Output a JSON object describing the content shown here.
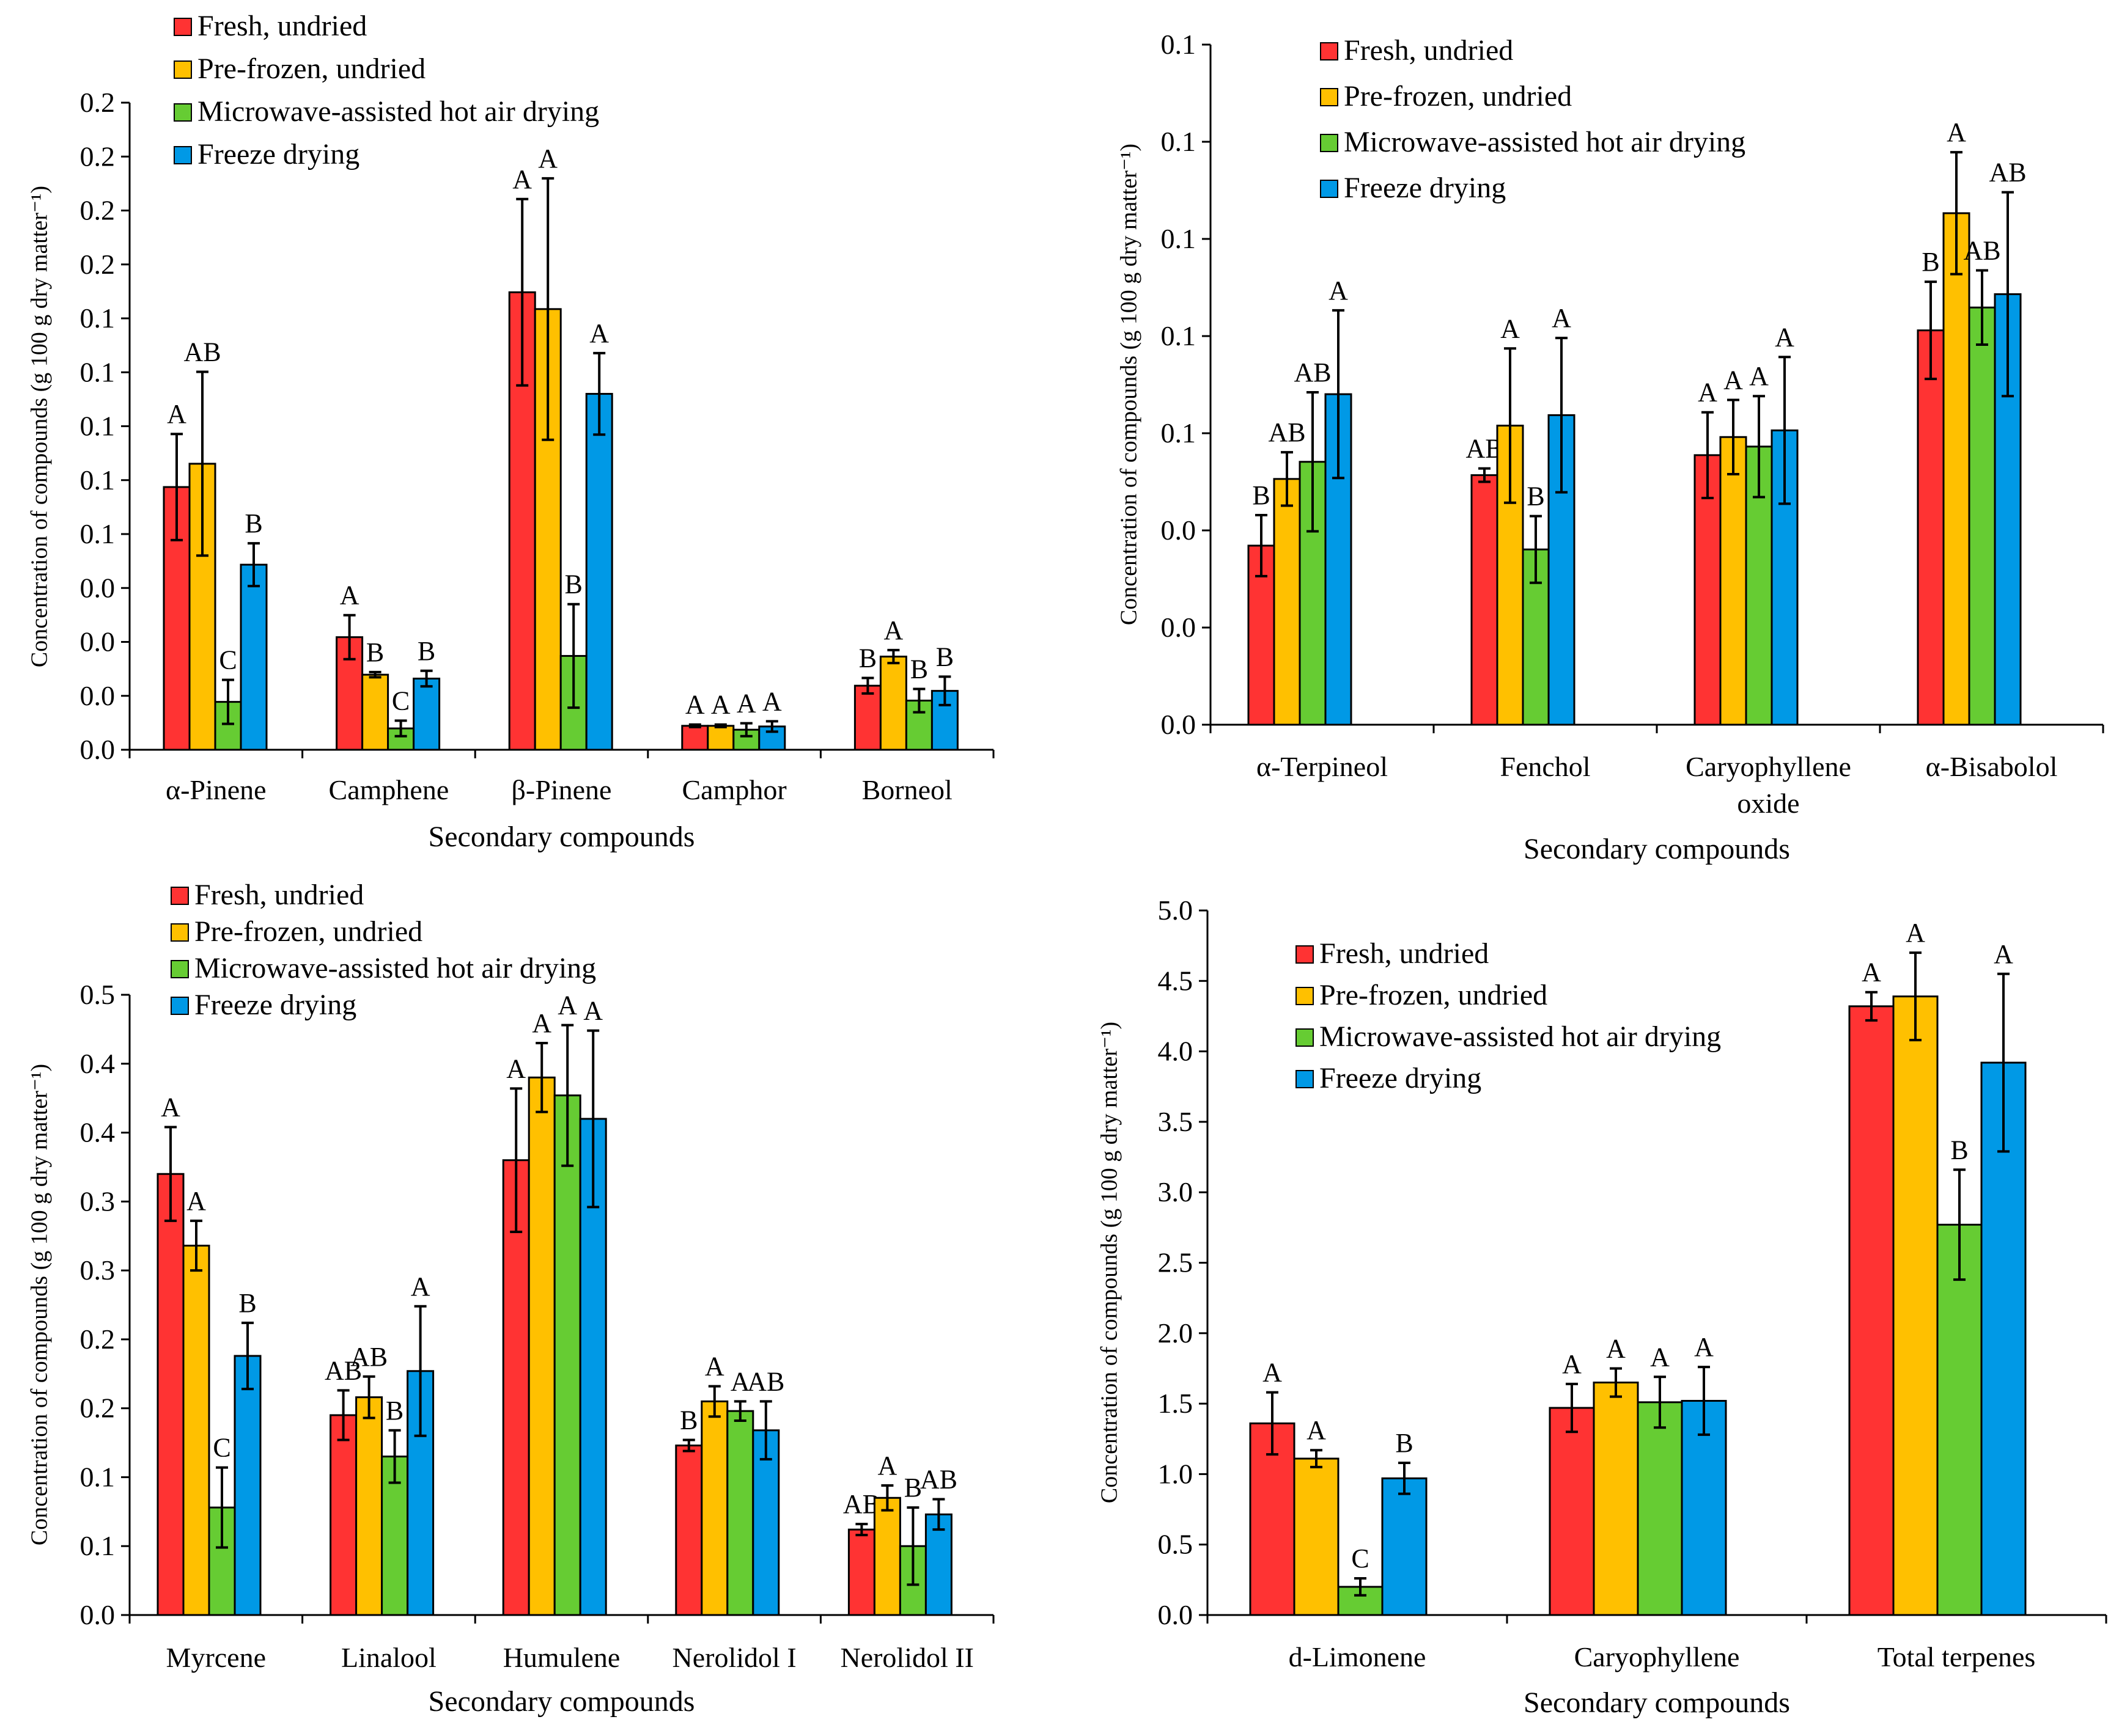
{
  "chart_data": [
    {
      "type": "bar",
      "panel": "top-left",
      "categories": [
        "α-Pinene",
        "Camphene",
        "β-Pinene",
        "Camphor",
        "Borneol"
      ],
      "xlabel": "Secondary compounds",
      "ylabel": "Concentration of compounds (g 100 g dry matter⁻¹)",
      "ylim": [
        0,
        0.2
      ],
      "yticks": [
        "0.0",
        "0.0",
        "0.0",
        "0.0",
        "0.1",
        "0.1",
        "0.1",
        "0.1",
        "0.1",
        "0.2",
        "0.2",
        "0.2",
        "0.2"
      ],
      "legend_position": "top-left",
      "series": [
        {
          "name": "Fresh, undried",
          "color": "#ff3333",
          "values": [
            0.0812,
            0.0348,
            0.1414,
            0.0074,
            0.0198
          ],
          "errors": [
            0.0164,
            0.0068,
            0.0288,
            0.0004,
            0.0024
          ],
          "letters": [
            "A",
            "A",
            "A",
            "A",
            "B"
          ]
        },
        {
          "name": "Pre-frozen, undried",
          "color": "#ffc000",
          "values": [
            0.0884,
            0.0232,
            0.1362,
            0.0074,
            0.0288
          ],
          "errors": [
            0.0284,
            0.0008,
            0.0404,
            0.0004,
            0.002
          ],
          "letters": [
            "AB",
            "B",
            "A",
            "A",
            "A"
          ]
        },
        {
          "name": "Microwave-assisted hot air drying",
          "color": "#66cc33",
          "values": [
            0.0148,
            0.0066,
            0.029,
            0.0062,
            0.0152
          ],
          "errors": [
            0.0068,
            0.0024,
            0.016,
            0.002,
            0.0036
          ],
          "letters": [
            "C",
            "C",
            "B",
            "A",
            "B"
          ]
        },
        {
          "name": "Freeze drying",
          "color": "#0099e6",
          "values": [
            0.0572,
            0.022,
            0.11,
            0.0072,
            0.0182
          ],
          "errors": [
            0.0066,
            0.0024,
            0.0126,
            0.0016,
            0.0044
          ],
          "letters": [
            "B",
            "B",
            "A",
            "A",
            "B"
          ]
        }
      ]
    },
    {
      "type": "bar",
      "panel": "top-right",
      "categories": [
        "α-Terpineol",
        "Fenchol",
        "Caryophyllene oxide",
        "α-Bisabolol"
      ],
      "xlabel": "Secondary compounds",
      "ylabel": "Concentration of compounds (g 100 g dry matter⁻¹)",
      "ylim": [
        0,
        0.0714
      ],
      "yticks": [
        "0.0",
        "0.0",
        "0.0",
        "0.1",
        "0.1",
        "0.1",
        "0.1",
        "0.1"
      ],
      "legend_position": "top-left",
      "series": [
        {
          "name": "Fresh, undried",
          "color": "#ff3333",
          "values": [
            0.0188,
            0.0262,
            0.0283,
            0.0414
          ],
          "errors": [
            0.0032,
            0.0007,
            0.0045,
            0.0051
          ],
          "letters": [
            "B",
            "AB",
            "A",
            "B"
          ]
        },
        {
          "name": "Pre-frozen, undried",
          "color": "#ffc000",
          "values": [
            0.0258,
            0.0314,
            0.0302,
            0.0537
          ],
          "errors": [
            0.0028,
            0.0081,
            0.0039,
            0.0064
          ],
          "letters": [
            "AB",
            "A",
            "A",
            "A"
          ]
        },
        {
          "name": "Microwave-assisted hot air drying",
          "color": "#66cc33",
          "values": [
            0.0276,
            0.0184,
            0.0292,
            0.0438
          ],
          "errors": [
            0.0073,
            0.0035,
            0.0053,
            0.0039
          ],
          "letters": [
            "AB",
            "B",
            "A",
            "AB"
          ]
        },
        {
          "name": "Freeze drying",
          "color": "#0099e6",
          "values": [
            0.0347,
            0.0325,
            0.0309,
            0.0452
          ],
          "errors": [
            0.0088,
            0.0081,
            0.0077,
            0.0107
          ],
          "letters": [
            "A",
            "A",
            "A",
            "AB"
          ]
        }
      ]
    },
    {
      "type": "bar",
      "panel": "bottom-left",
      "categories": [
        "Myrcene",
        "Linalool",
        "Humulene",
        "Nerolidol I",
        "Nerolidol II"
      ],
      "xlabel": "Secondary compounds",
      "ylabel": "Concentration of compounds (g 100 g dry matter⁻¹)",
      "ylim": [
        0,
        0.45
      ],
      "yticks": [
        "0.0",
        "0.1",
        "0.1",
        "0.2",
        "0.2",
        "0.3",
        "0.3",
        "0.4",
        "0.4",
        "0.5"
      ],
      "legend_position": "top-left",
      "series": [
        {
          "name": "Fresh, undried",
          "color": "#ff3333",
          "values": [
            0.32,
            0.145,
            0.33,
            0.123,
            0.062
          ],
          "errors": [
            0.034,
            0.018,
            0.052,
            0.004,
            0.004
          ],
          "letters": [
            "A",
            "AB",
            "A",
            "B",
            "AB"
          ]
        },
        {
          "name": "Pre-frozen, undried",
          "color": "#ffc000",
          "values": [
            0.268,
            0.158,
            0.39,
            0.155,
            0.085
          ],
          "errors": [
            0.018,
            0.015,
            0.025,
            0.011,
            0.009
          ],
          "letters": [
            "A",
            "AB",
            "A",
            "A",
            "A"
          ]
        },
        {
          "name": "Microwave-assisted hot air drying",
          "color": "#66cc33",
          "values": [
            0.078,
            0.115,
            0.377,
            0.148,
            0.05
          ],
          "errors": [
            0.029,
            0.019,
            0.051,
            0.007,
            0.028
          ],
          "letters": [
            "C",
            "B",
            "A",
            "A",
            "B"
          ]
        },
        {
          "name": "Freeze drying",
          "color": "#0099e6",
          "values": [
            0.188,
            0.177,
            0.36,
            0.134,
            0.073
          ],
          "errors": [
            0.024,
            0.047,
            0.064,
            0.021,
            0.011
          ],
          "letters": [
            "B",
            "A",
            "A",
            "AB",
            "AB"
          ]
        }
      ]
    },
    {
      "type": "bar",
      "panel": "bottom-right",
      "categories": [
        "d-Limonene",
        "Caryophyllene",
        "Total terpenes"
      ],
      "xlabel": "Secondary compounds",
      "ylabel": "Concentration of compounds (g 100 g dry matter⁻¹)",
      "ylim": [
        0,
        5
      ],
      "yticks": [
        "0.0",
        "0.5",
        "1.0",
        "1.5",
        "2.0",
        "2.5",
        "3.0",
        "3.5",
        "4.0",
        "4.5",
        "5.0"
      ],
      "legend_position": "top-left",
      "series": [
        {
          "name": "Fresh, undried",
          "color": "#ff3333",
          "values": [
            1.36,
            1.47,
            4.32
          ],
          "errors": [
            0.22,
            0.17,
            0.1
          ],
          "letters": [
            "A",
            "A",
            "A"
          ]
        },
        {
          "name": "Pre-frozen, undried",
          "color": "#ffc000",
          "values": [
            1.11,
            1.65,
            4.39
          ],
          "errors": [
            0.06,
            0.1,
            0.31
          ],
          "letters": [
            "A",
            "A",
            "A"
          ]
        },
        {
          "name": "Microwave-assisted hot air drying",
          "color": "#66cc33",
          "values": [
            0.2,
            1.51,
            2.77
          ],
          "errors": [
            0.06,
            0.18,
            0.39
          ],
          "letters": [
            "C",
            "A",
            "B"
          ]
        },
        {
          "name": "Freeze drying",
          "color": "#0099e6",
          "values": [
            0.97,
            1.52,
            3.92
          ],
          "errors": [
            0.11,
            0.24,
            0.63
          ],
          "letters": [
            "B",
            "A",
            "A"
          ]
        }
      ]
    }
  ]
}
